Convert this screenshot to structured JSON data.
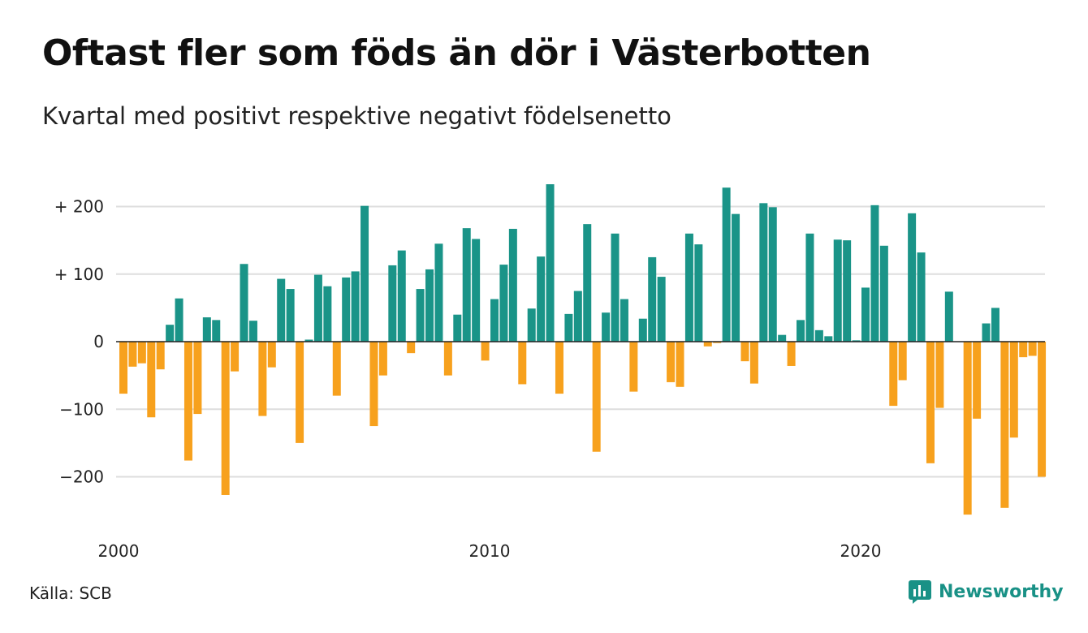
{
  "title": "Oftast fler som föds än dör i Västerbotten",
  "subtitle": "Kvartal med positivt respektive negativt födelsenetto",
  "source": "Källa: SCB",
  "brand": {
    "name": "Newsworthy",
    "icon": "newsworthy-logo-icon"
  },
  "colors": {
    "positive": "#1a9488",
    "negative": "#f7a11d",
    "grid": "#dedede",
    "zero_line": "#222222",
    "brand": "#199186"
  },
  "chart_data": {
    "type": "bar",
    "title": "Oftast fler som föds än dör i Västerbotten",
    "subtitle": "Kvartal med positivt respektive negativt födelsenetto",
    "xlabel": "",
    "ylabel": "",
    "ylim": [
      -270,
      240
    ],
    "y_ticks": [
      {
        "value": 200,
        "label": "+ 200"
      },
      {
        "value": 100,
        "label": "+ 100"
      },
      {
        "value": 0,
        "label": "0"
      },
      {
        "value": -100,
        "label": "−100"
      },
      {
        "value": -200,
        "label": "−200"
      }
    ],
    "x_ticks": [
      {
        "value": 2000,
        "label": "2000"
      },
      {
        "value": 2010,
        "label": "2010"
      },
      {
        "value": 2020,
        "label": "2020"
      }
    ],
    "x_range": [
      2000,
      2025
    ],
    "grid": true,
    "legend": "none",
    "bar_start": 2000,
    "bars_per_year": 4,
    "values": [
      -77,
      -37,
      -32,
      -112,
      -41,
      25,
      64,
      -176,
      -107,
      36,
      32,
      -227,
      -44,
      115,
      31,
      -110,
      -38,
      93,
      78,
      -150,
      3,
      99,
      82,
      -80,
      95,
      104,
      201,
      -125,
      -50,
      113,
      135,
      -17,
      78,
      107,
      145,
      -50,
      40,
      168,
      152,
      -28,
      63,
      114,
      167,
      -63,
      49,
      126,
      233,
      -77,
      41,
      75,
      174,
      -163,
      43,
      160,
      63,
      -74,
      34,
      125,
      96,
      -60,
      -67,
      160,
      144,
      -7,
      -2,
      228,
      189,
      -29,
      -62,
      205,
      199,
      10,
      -36,
      32,
      160,
      17,
      8,
      151,
      150,
      2,
      80,
      202,
      142,
      -95,
      -57,
      190,
      132,
      -180,
      -98,
      74,
      0,
      -256,
      -114,
      27,
      50,
      -246,
      -142,
      -23,
      -21,
      -200
    ]
  }
}
